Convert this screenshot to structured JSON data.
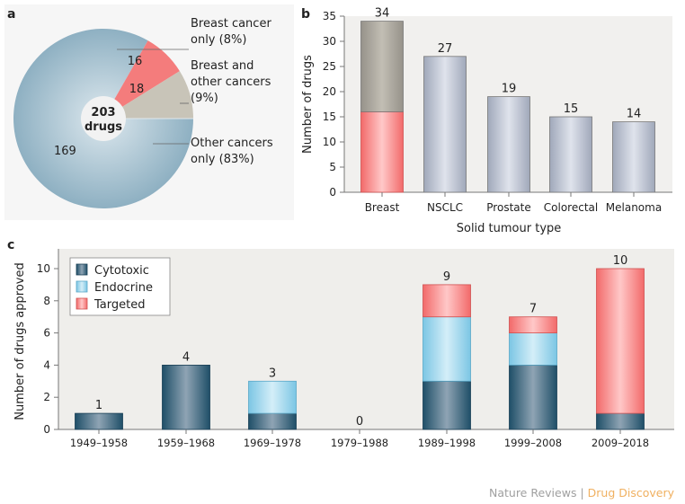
{
  "chart_data": [
    {
      "panel": "a",
      "type": "pie",
      "center_label": [
        "203",
        "drugs"
      ],
      "slices": [
        {
          "label": "Other cancers only (83%)",
          "label_lines": [
            "Other cancers",
            "only (83%)"
          ],
          "value": 169,
          "color": "#9ab8c8"
        },
        {
          "label": "Breast cancer only (8%)",
          "label_lines": [
            "Breast cancer",
            "only (8%)"
          ],
          "value": 16,
          "color": "#f47c7c"
        },
        {
          "label": "Breast and other cancers (9%)",
          "label_lines": [
            "Breast and",
            "other cancers",
            "(9%)"
          ],
          "value": 18,
          "color": "#c8c4b8"
        }
      ]
    },
    {
      "panel": "b",
      "type": "bar",
      "xlabel": "Solid tumour type",
      "ylabel": "Number of drugs",
      "ylim": [
        0,
        35
      ],
      "yticks": [
        0,
        5,
        10,
        15,
        20,
        25,
        30,
        35
      ],
      "categories": [
        "Breast",
        "NSCLC",
        "Prostate",
        "Colorectal",
        "Melanoma"
      ],
      "values": [
        34,
        27,
        19,
        15,
        14
      ],
      "breast_split": {
        "breast_only": 16,
        "breast_and_other": 18
      },
      "colors": {
        "default": "#b4bccb",
        "breast_only": "#f47c7c",
        "breast_and_other": "#a8a498"
      }
    },
    {
      "panel": "c",
      "type": "bar",
      "stacked": true,
      "xlabel": "",
      "ylabel": "Number of drugs approved",
      "ylim": [
        0,
        11
      ],
      "yticks": [
        0,
        2,
        4,
        6,
        8,
        10
      ],
      "legend_position": "top-left",
      "categories": [
        "1949–1958",
        "1959–1968",
        "1969–1978",
        "1979–1988",
        "1989–1998",
        "1999–2008",
        "2009–2018"
      ],
      "totals": [
        1,
        4,
        3,
        0,
        9,
        7,
        10
      ],
      "series": [
        {
          "name": "Cytotoxic",
          "values": [
            1,
            4,
            1,
            0,
            3,
            4,
            1
          ],
          "color": "#2f6480"
        },
        {
          "name": "Endocrine",
          "values": [
            0,
            0,
            2,
            0,
            4,
            2,
            0
          ],
          "color": "#8fd0ea"
        },
        {
          "name": "Targeted",
          "values": [
            0,
            0,
            0,
            0,
            2,
            1,
            9
          ],
          "color": "#f47c7c"
        }
      ]
    }
  ],
  "footer": {
    "journal": "Nature Reviews",
    "separator": " | ",
    "section": "Drug Discovery",
    "journal_color": "#a0a0a0",
    "section_color": "#f0b060"
  }
}
